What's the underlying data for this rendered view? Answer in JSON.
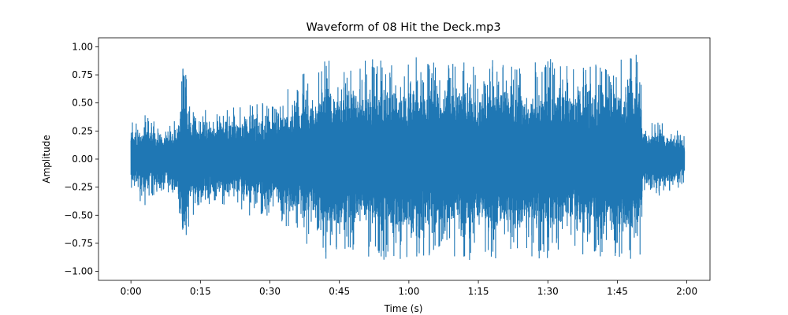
{
  "chart_data": {
    "type": "line",
    "title": "Waveform of 08 Hit the Deck.mp3",
    "xlabel": "Time (s)",
    "ylabel": "Amplitude",
    "xlim": [
      -7,
      125
    ],
    "ylim": [
      -1.08,
      1.08
    ],
    "grid": false,
    "series_color": "#1f77b4",
    "x_ticks": [
      {
        "value": 0,
        "label": "0:00"
      },
      {
        "value": 15,
        "label": "0:15"
      },
      {
        "value": 30,
        "label": "0:30"
      },
      {
        "value": 45,
        "label": "0:45"
      },
      {
        "value": 60,
        "label": "1:00"
      },
      {
        "value": 75,
        "label": "1:15"
      },
      {
        "value": 90,
        "label": "1:30"
      },
      {
        "value": 105,
        "label": "1:45"
      },
      {
        "value": 120,
        "label": "2:00"
      }
    ],
    "y_ticks": [
      {
        "value": 1.0,
        "label": "1.00"
      },
      {
        "value": 0.75,
        "label": "0.75"
      },
      {
        "value": 0.5,
        "label": "0.50"
      },
      {
        "value": 0.25,
        "label": "0.25"
      },
      {
        "value": 0.0,
        "label": "0.00"
      },
      {
        "value": -0.25,
        "label": "−0.25"
      },
      {
        "value": -0.5,
        "label": "−0.50"
      },
      {
        "value": -0.75,
        "label": "−0.75"
      },
      {
        "value": -1.0,
        "label": "−1.00"
      }
    ],
    "envelope": {
      "time_s": [
        0,
        1,
        3,
        6,
        9,
        10.5,
        11,
        13,
        16,
        20,
        25,
        30,
        32,
        35,
        36.5,
        37.5,
        38.5,
        40,
        42,
        45,
        50,
        55,
        60,
        65,
        70,
        75,
        80,
        85,
        90,
        95,
        100,
        103,
        105,
        107,
        110,
        110.5,
        112,
        115,
        118,
        119.5
      ],
      "peak_amplitude": [
        0.35,
        0.33,
        0.42,
        0.3,
        0.32,
        0.55,
        0.92,
        0.55,
        0.48,
        0.45,
        0.5,
        0.52,
        0.58,
        0.72,
        0.6,
        0.85,
        0.78,
        0.8,
        0.9,
        0.85,
        0.88,
        0.9,
        0.92,
        0.88,
        0.93,
        0.88,
        0.9,
        0.86,
        0.9,
        0.84,
        0.86,
        0.93,
        0.95,
        0.95,
        0.92,
        0.4,
        0.35,
        0.32,
        0.28,
        0.22
      ]
    }
  }
}
